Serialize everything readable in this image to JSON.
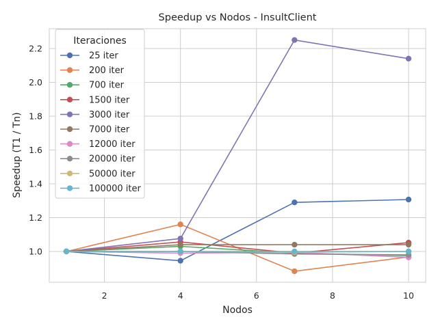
{
  "chart_data": {
    "type": "line",
    "title": "Speedup vs Nodos - InsultClient",
    "xlabel": "Nodos",
    "ylabel": "Speedup (T1 / Tn)",
    "xlim": [
      0.55,
      10.45
    ],
    "ylim": [
      0.818,
      2.317
    ],
    "xticks": [
      2,
      4,
      6,
      8,
      10
    ],
    "yticks": [
      1.0,
      1.2,
      1.4,
      1.6,
      1.8,
      2.0,
      2.2
    ],
    "ytick_labels": [
      "1.0",
      "1.2",
      "1.4",
      "1.6",
      "1.8",
      "2.0",
      "2.2"
    ],
    "grid": true,
    "legend_title": "Iteraciones",
    "legend_position": "top-left",
    "x": [
      1,
      4,
      7,
      10
    ],
    "series": [
      {
        "name": "25 iter",
        "color": "#4c72b0",
        "values": [
          1.0,
          0.945,
          1.29,
          1.307
        ]
      },
      {
        "name": "200 iter",
        "color": "#dd8452",
        "values": [
          1.0,
          1.16,
          0.883,
          0.967
        ]
      },
      {
        "name": "700 iter",
        "color": "#55a868",
        "values": [
          1.0,
          1.03,
          0.99,
          0.975
        ]
      },
      {
        "name": "1500 iter",
        "color": "#c44e52",
        "values": [
          1.0,
          1.056,
          0.99,
          1.052
        ]
      },
      {
        "name": "3000 iter",
        "color": "#8172b3",
        "values": [
          1.0,
          1.076,
          2.25,
          2.14
        ]
      },
      {
        "name": "7000 iter",
        "color": "#937860",
        "values": [
          1.0,
          1.04,
          1.04,
          1.04
        ]
      },
      {
        "name": "12000 iter",
        "color": "#da8bc3",
        "values": [
          1.0,
          0.99,
          0.995,
          0.965
        ]
      },
      {
        "name": "20000 iter",
        "color": "#8c8c8c",
        "values": [
          1.0,
          1.0,
          0.985,
          0.98
        ]
      },
      {
        "name": "50000 iter",
        "color": "#ccb974",
        "values": [
          1.0,
          1.0,
          0.995,
          1.0
        ]
      },
      {
        "name": "100000 iter",
        "color": "#64b5cd",
        "values": [
          1.0,
          1.0,
          1.0,
          1.0
        ]
      }
    ]
  }
}
